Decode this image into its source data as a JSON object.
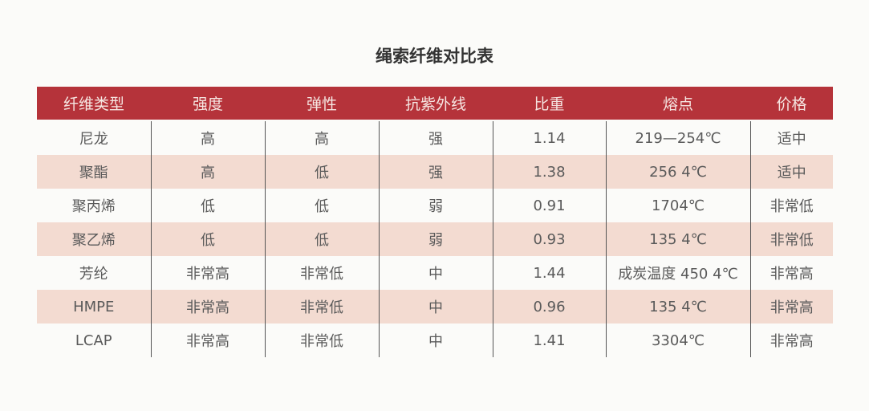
{
  "title": "绳索纤维对比表",
  "colors": {
    "header_bg": "#b5333a",
    "stripe_bg": "#f3dbd1"
  },
  "table": {
    "headers": [
      "纤维类型",
      "强度",
      "弹性",
      "抗紫外线",
      "比重",
      "熔点",
      "价格"
    ],
    "rows": [
      [
        "尼龙",
        "高",
        "高",
        "强",
        "1.14",
        "219—254℃",
        "适中"
      ],
      [
        "聚酯",
        "高",
        "低",
        "强",
        "1.38",
        "256 4℃",
        "适中"
      ],
      [
        "聚丙烯",
        "低",
        "低",
        "弱",
        "0.91",
        "1704℃",
        "非常低"
      ],
      [
        "聚乙烯",
        "低",
        "低",
        "弱",
        "0.93",
        "135 4℃",
        "非常低"
      ],
      [
        "芳纶",
        "非常高",
        "非常低",
        "中",
        "1.44",
        "成炭温度 450 4℃",
        "非常高"
      ],
      [
        "HMPE",
        "非常高",
        "非常低",
        "中",
        "0.96",
        "135 4℃",
        "非常高"
      ],
      [
        "LCAP",
        "非常高",
        "非常低",
        "中",
        "1.41",
        "3304℃",
        "非常高"
      ]
    ]
  }
}
